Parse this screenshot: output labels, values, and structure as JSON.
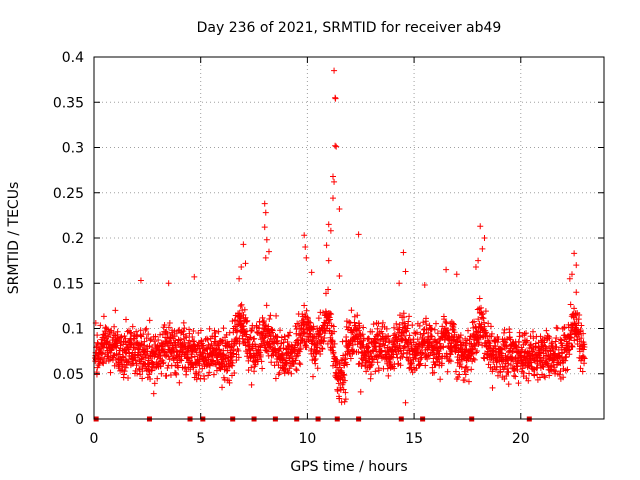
{
  "chart_data": {
    "type": "scatter",
    "title": "Day 236 of 2021, SRMTID for receiver ab49",
    "xlabel": "GPS time / hours",
    "ylabel": "SRMTID / TECUs",
    "xlim": [
      0,
      23.9
    ],
    "ylim": [
      0,
      0.4
    ],
    "xticks": [
      0,
      5,
      10,
      15,
      20
    ],
    "xtick_labels": [
      "0",
      "5",
      "10",
      "15",
      "20"
    ],
    "yticks": [
      0,
      0.05,
      0.1,
      0.15,
      0.2,
      0.25,
      0.3,
      0.35,
      0.4
    ],
    "ytick_labels": [
      "0",
      "0.05",
      "0.1",
      "0.15",
      "0.2",
      "0.25",
      "0.3",
      "0.35",
      "0.4"
    ],
    "grid": true,
    "marker": "plus",
    "point_color": "#ff0000",
    "baseline_color": "#dd0000",
    "baseline_marks_x": [
      0.1,
      2.6,
      4.5,
      5.1,
      6.5,
      7.5,
      8.5,
      9.5,
      10.5,
      11.4,
      12.4,
      14.4,
      15.4,
      17.7,
      20.4
    ],
    "series": [
      {
        "name": "SRMTID",
        "points": [
          [
            11.25,
            0.385
          ],
          [
            11.3,
            0.355
          ],
          [
            11.32,
            0.354
          ],
          [
            11.3,
            0.302
          ],
          [
            11.35,
            0.301
          ],
          [
            11.2,
            0.268
          ],
          [
            11.25,
            0.262
          ],
          [
            11.2,
            0.244
          ],
          [
            11.5,
            0.232
          ],
          [
            11.0,
            0.215
          ],
          [
            11.1,
            0.208
          ],
          [
            12.4,
            0.204
          ],
          [
            11.5,
            0.158
          ],
          [
            11.0,
            0.175
          ],
          [
            10.9,
            0.192
          ],
          [
            8.0,
            0.238
          ],
          [
            8.05,
            0.228
          ],
          [
            8.0,
            0.212
          ],
          [
            8.1,
            0.198
          ],
          [
            8.2,
            0.185
          ],
          [
            8.05,
            0.178
          ],
          [
            9.9,
            0.19
          ],
          [
            9.85,
            0.203
          ],
          [
            9.95,
            0.178
          ],
          [
            10.2,
            0.162
          ],
          [
            7.0,
            0.193
          ],
          [
            6.9,
            0.168
          ],
          [
            7.1,
            0.172
          ],
          [
            6.8,
            0.155
          ],
          [
            18.1,
            0.213
          ],
          [
            18.3,
            0.2
          ],
          [
            18.2,
            0.188
          ],
          [
            18.0,
            0.175
          ],
          [
            17.9,
            0.168
          ],
          [
            22.5,
            0.183
          ],
          [
            22.6,
            0.17
          ],
          [
            22.4,
            0.16
          ],
          [
            22.3,
            0.155
          ],
          [
            22.6,
            0.14
          ],
          [
            14.5,
            0.184
          ],
          [
            14.6,
            0.163
          ],
          [
            14.3,
            0.15
          ],
          [
            15.5,
            0.148
          ],
          [
            16.5,
            0.165
          ],
          [
            17.0,
            0.16
          ],
          [
            2.2,
            0.153
          ],
          [
            3.5,
            0.15
          ],
          [
            4.7,
            0.157
          ],
          [
            1.0,
            0.12
          ],
          [
            1.5,
            0.11
          ],
          [
            12.5,
            0.03
          ],
          [
            14.6,
            0.018
          ],
          [
            11.8,
            0.022
          ],
          [
            6.0,
            0.035
          ],
          [
            4.0,
            0.04
          ],
          [
            2.8,
            0.028
          ]
        ]
      }
    ]
  }
}
